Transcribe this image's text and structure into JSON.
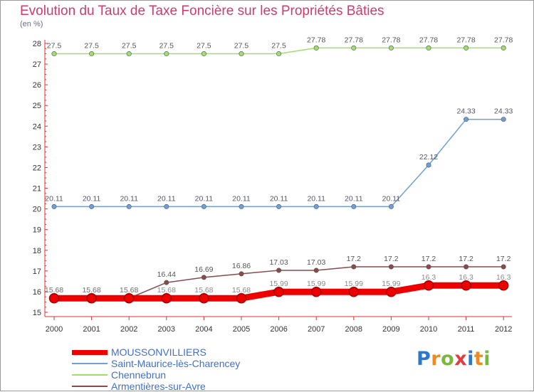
{
  "chart_data": {
    "type": "line",
    "title": "Evolution du Taux de Taxe Foncière sur les Propriétés Bâties",
    "unit_label": "(en %)",
    "x": [
      "2000",
      "2001",
      "2002",
      "2003",
      "2004",
      "2005",
      "2006",
      "2007",
      "2008",
      "2009",
      "2010",
      "2011",
      "2012"
    ],
    "ylim": [
      15,
      28
    ],
    "yticks": [
      15,
      16,
      17,
      18,
      19,
      20,
      21,
      22,
      23,
      24,
      25,
      26,
      27,
      28
    ],
    "series": [
      {
        "name": "MOUSSONVILLIERS",
        "color": "#ee0000",
        "values": [
          15.68,
          15.68,
          15.68,
          15.68,
          15.68,
          15.68,
          15.99,
          15.99,
          15.99,
          15.99,
          16.3,
          16.3,
          16.3
        ],
        "labels": [
          "15.68",
          "15.68",
          "15.68",
          "15.68",
          "15.68",
          "15.68",
          "15.99",
          "15.99",
          "15.99",
          "15.99",
          "16.3",
          "16.3",
          "16.3"
        ]
      },
      {
        "name": "Saint-Maurice-lès-Charencey",
        "color": "#6f9fd8",
        "values": [
          20.11,
          20.11,
          20.11,
          20.11,
          20.11,
          20.11,
          20.11,
          20.11,
          20.11,
          20.11,
          22.12,
          24.33,
          24.33
        ],
        "labels": [
          "20.11",
          "20.11",
          "20.11",
          "20.11",
          "20.11",
          "20.11",
          "20.11",
          "20.11",
          "20.11",
          "20.11",
          "22.12",
          "24.33",
          "24.33"
        ]
      },
      {
        "name": "Chennebrun",
        "color": "#9ee06a",
        "values": [
          27.5,
          27.5,
          27.5,
          27.5,
          27.5,
          27.5,
          27.5,
          27.78,
          27.78,
          27.78,
          27.78,
          27.78,
          27.78
        ],
        "labels": [
          "27.5",
          "27.5",
          "27.5",
          "27.5",
          "27.5",
          "27.5",
          "27.5",
          "27.78",
          "27.78",
          "27.78",
          "27.78",
          "27.78",
          "27.78"
        ]
      },
      {
        "name": "Armentières-sur-Avre",
        "color": "#8a4a4a",
        "values": [
          15.68,
          15.68,
          15.68,
          16.44,
          16.69,
          16.86,
          17.03,
          17.03,
          17.2,
          17.2,
          17.2,
          17.2,
          17.2
        ],
        "labels": [
          "15.68",
          "15.68",
          "15.68",
          "16.44",
          "16.69",
          "16.86",
          "17.03",
          "17.03",
          "17.2",
          "17.2",
          "17.2",
          "17.2",
          "17.2"
        ]
      }
    ],
    "legend_position": "bottom-left",
    "grid": false
  },
  "logo": {
    "text": "Proxiti",
    "colors": [
      "#2f77c8",
      "#f08a1c",
      "#79b83c",
      "#e23c3c",
      "#2f77c8",
      "#f08a1c",
      "#79b83c"
    ]
  }
}
